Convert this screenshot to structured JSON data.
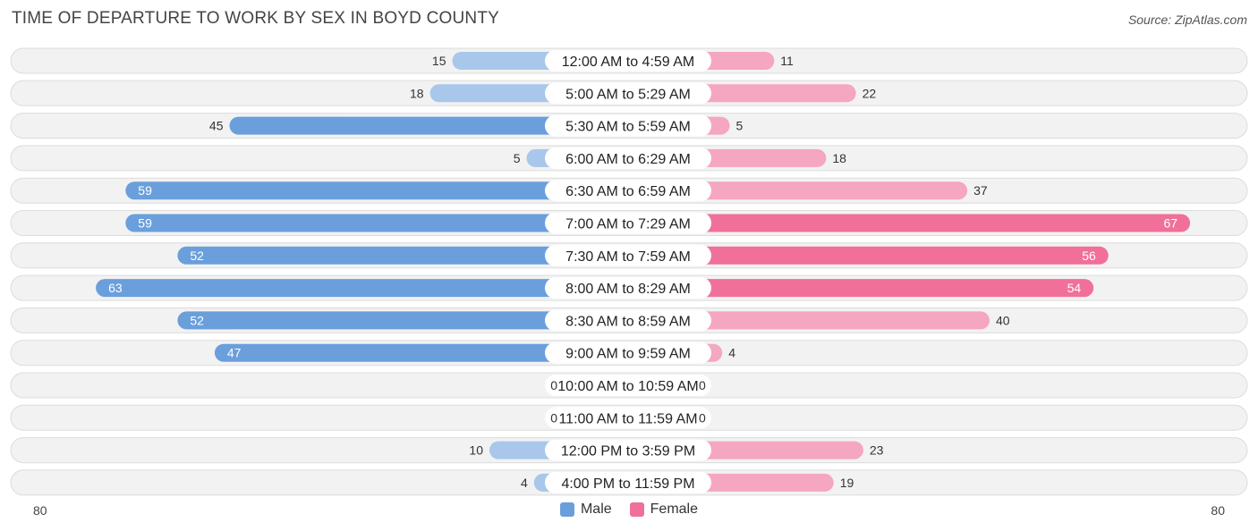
{
  "title": "TIME OF DEPARTURE TO WORK BY SEX IN BOYD COUNTY",
  "source": "Source: ZipAtlas.com",
  "colors": {
    "male": "#6a9fdc",
    "male_light": "#a8c7ea",
    "female": "#f07099",
    "female_light": "#f5a6c0",
    "row_bg": "#f2f2f2",
    "row_border": "#dcdcdc"
  },
  "chart_data": {
    "type": "bar",
    "orientation": "horizontal-diverging",
    "categories": [
      "12:00 AM to 4:59 AM",
      "5:00 AM to 5:29 AM",
      "5:30 AM to 5:59 AM",
      "6:00 AM to 6:29 AM",
      "6:30 AM to 6:59 AM",
      "7:00 AM to 7:29 AM",
      "7:30 AM to 7:59 AM",
      "8:00 AM to 8:29 AM",
      "8:30 AM to 8:59 AM",
      "9:00 AM to 9:59 AM",
      "10:00 AM to 10:59 AM",
      "11:00 AM to 11:59 AM",
      "12:00 PM to 3:59 PM",
      "4:00 PM to 11:59 PM"
    ],
    "series": [
      {
        "name": "Male",
        "values": [
          15,
          18,
          45,
          5,
          59,
          59,
          52,
          63,
          52,
          47,
          0,
          0,
          10,
          4
        ]
      },
      {
        "name": "Female",
        "values": [
          11,
          22,
          5,
          18,
          37,
          67,
          56,
          54,
          40,
          4,
          0,
          0,
          23,
          19
        ]
      }
    ],
    "xlim": [
      -80,
      80
    ],
    "axis_labels": {
      "left": "80",
      "right": "80"
    },
    "legend_position": "bottom-center"
  }
}
